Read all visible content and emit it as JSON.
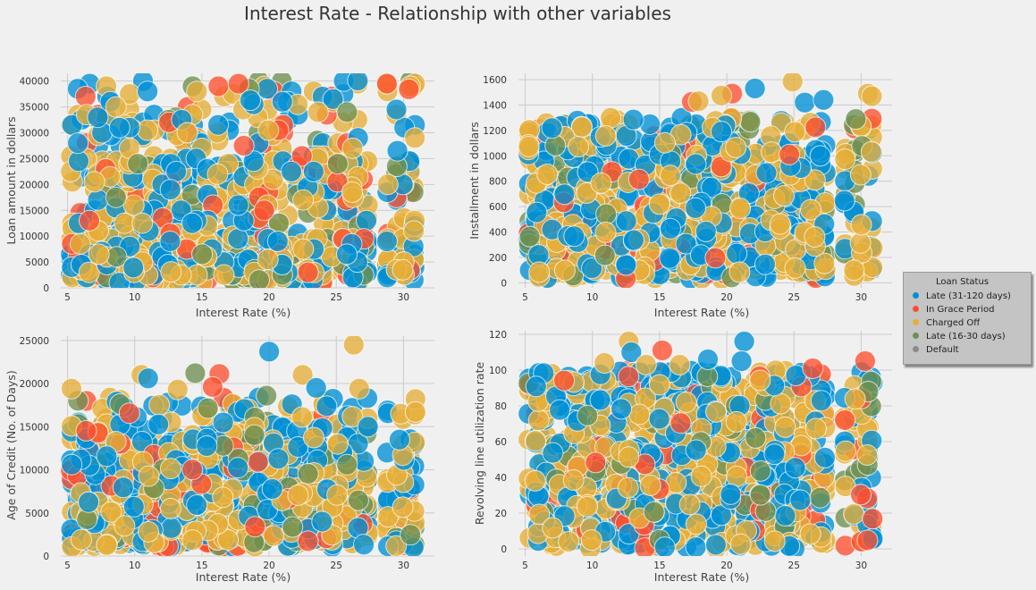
{
  "chart_data": [
    {
      "type": "scatter",
      "xlabel": "Interest Rate (%)",
      "ylabel": "Loan amount in dollars",
      "xlim": [
        4.5,
        32.3
      ],
      "ylim": [
        0,
        41500
      ],
      "xticks": [
        5,
        10,
        15,
        20,
        25,
        30
      ],
      "yticks": [
        0,
        5000,
        10000,
        15000,
        20000,
        25000,
        30000,
        35000,
        40000
      ],
      "y_range": [
        1000,
        40000
      ],
      "y_step": 500,
      "y_bands": [
        [
          1000,
          10000,
          0.5
        ],
        [
          10000,
          25000,
          0.35
        ],
        [
          25000,
          40000,
          0.15
        ]
      ],
      "n_points": 950,
      "seed": 11,
      "extras": [
        {
          "x": 26.6,
          "y": 40100,
          "s": 0
        },
        {
          "x": 30.4,
          "y": 38400,
          "s": 1
        },
        {
          "x": 18.6,
          "y": 36300,
          "s": 0
        },
        {
          "x": 12.7,
          "y": 3100,
          "s": 2
        },
        {
          "x": 9.9,
          "y": 3900,
          "s": 0
        }
      ]
    },
    {
      "type": "scatter",
      "xlabel": "Interest Rate (%)",
      "ylabel": "Installment in dollars",
      "xlim": [
        4.5,
        32.3
      ],
      "ylim": [
        -40,
        1650
      ],
      "xticks": [
        5,
        10,
        15,
        20,
        25,
        30
      ],
      "yticks": [
        0,
        200,
        400,
        600,
        800,
        1000,
        1200,
        1400,
        1600
      ],
      "y_range": [
        30,
        1300
      ],
      "y_slope": 11,
      "y_bands": [
        [
          30,
          500,
          0.45
        ],
        [
          500,
          1000,
          0.38
        ],
        [
          1000,
          1300,
          0.17
        ]
      ],
      "n_points": 950,
      "seed": 23,
      "extras": [
        {
          "x": 24.9,
          "y": 1585,
          "s": 2
        },
        {
          "x": 22.1,
          "y": 1530,
          "s": 0
        },
        {
          "x": 20.4,
          "y": 1490,
          "s": 1
        },
        {
          "x": 19.6,
          "y": 1475,
          "s": 2
        },
        {
          "x": 30.5,
          "y": 1490,
          "s": 2
        },
        {
          "x": 30.8,
          "y": 1470,
          "s": 2
        },
        {
          "x": 17.4,
          "y": 1425,
          "s": 1
        },
        {
          "x": 17.9,
          "y": 1430,
          "s": 2
        },
        {
          "x": 25.8,
          "y": 1420,
          "s": 0
        },
        {
          "x": 27.2,
          "y": 1440,
          "s": 0
        },
        {
          "x": 29.6,
          "y": 1290,
          "s": 3
        },
        {
          "x": 26.6,
          "y": 1225,
          "s": 1
        }
      ]
    },
    {
      "type": "scatter",
      "xlabel": "Interest Rate (%)",
      "ylabel": "Age of Credit (No. of Days)",
      "xlim": [
        4.5,
        32.3
      ],
      "ylim": [
        0,
        25500
      ],
      "xticks": [
        5,
        10,
        15,
        20,
        25,
        30
      ],
      "yticks": [
        0,
        5000,
        10000,
        15000,
        20000,
        25000
      ],
      "y_range": [
        1000,
        18500
      ],
      "y_bands": [
        [
          1000,
          8000,
          0.55
        ],
        [
          8000,
          13500,
          0.32
        ],
        [
          13500,
          18500,
          0.13
        ]
      ],
      "n_points": 950,
      "seed": 37,
      "extras": [
        {
          "x": 26.3,
          "y": 24500,
          "s": 2
        },
        {
          "x": 20.0,
          "y": 23700,
          "s": 0
        },
        {
          "x": 14.5,
          "y": 21200,
          "s": 3
        },
        {
          "x": 16.3,
          "y": 21100,
          "s": 1
        },
        {
          "x": 10.5,
          "y": 21000,
          "s": 2
        },
        {
          "x": 11.0,
          "y": 20600,
          "s": 0
        },
        {
          "x": 22.5,
          "y": 21000,
          "s": 2
        },
        {
          "x": 23.5,
          "y": 19500,
          "s": 0
        },
        {
          "x": 5.3,
          "y": 19400,
          "s": 2
        },
        {
          "x": 15.8,
          "y": 19600,
          "s": 1
        },
        {
          "x": 19.8,
          "y": 18600,
          "s": 3
        },
        {
          "x": 30.9,
          "y": 18200,
          "s": 2
        },
        {
          "x": 26.7,
          "y": 19400,
          "s": 2
        },
        {
          "x": 13.2,
          "y": 19300,
          "s": 2
        },
        {
          "x": 29.8,
          "y": 16500,
          "s": 2
        },
        {
          "x": 30.9,
          "y": 16700,
          "s": 2
        },
        {
          "x": 29.7,
          "y": 13500,
          "s": 0
        }
      ]
    },
    {
      "type": "scatter",
      "xlabel": "Interest Rate (%)",
      "ylabel": "Revolving line utilization rate",
      "xlim": [
        4.5,
        32.3
      ],
      "ylim": [
        -4,
        122
      ],
      "xticks": [
        5,
        10,
        15,
        20,
        25,
        30
      ],
      "yticks": [
        0,
        20,
        40,
        60,
        80,
        100,
        120
      ],
      "y_range": [
        0,
        100
      ],
      "y_bands": [
        [
          0,
          100,
          1.0
        ]
      ],
      "n_points": 950,
      "seed": 53,
      "extras": [
        {
          "x": 21.3,
          "y": 116,
          "s": 0
        },
        {
          "x": 12.7,
          "y": 116,
          "s": 2
        },
        {
          "x": 12.9,
          "y": 110,
          "s": 0
        },
        {
          "x": 15.2,
          "y": 111,
          "s": 1
        },
        {
          "x": 18.6,
          "y": 106,
          "s": 0
        },
        {
          "x": 21.1,
          "y": 105,
          "s": 0
        },
        {
          "x": 30.3,
          "y": 105,
          "s": 1
        },
        {
          "x": 26.4,
          "y": 101,
          "s": 1
        },
        {
          "x": 14.0,
          "y": 103,
          "s": 2
        },
        {
          "x": 16.5,
          "y": 103,
          "s": 2
        },
        {
          "x": 10.9,
          "y": 104,
          "s": 2
        }
      ]
    }
  ],
  "figure": {
    "title": "Interest Rate - Relationship with other variables",
    "x_rates": [
      5.3,
      5.8,
      6.0,
      6.4,
      6.6,
      7.0,
      7.3,
      7.6,
      7.9,
      8.2,
      8.6,
      8.9,
      9.2,
      9.6,
      9.9,
      10.2,
      10.6,
      11.0,
      11.4,
      11.8,
      12.1,
      12.5,
      12.7,
      13.1,
      13.5,
      13.9,
      14.3,
      14.6,
      15.0,
      15.4,
      15.8,
      16.2,
      16.6,
      17.0,
      17.3,
      17.7,
      18.1,
      18.5,
      18.9,
      19.2,
      19.6,
      19.9,
      20.3,
      20.7,
      21.0,
      21.4,
      21.7,
      22.1,
      22.5,
      22.9,
      23.3,
      23.6,
      24.0,
      24.3,
      24.7,
      25.1,
      25.5,
      25.8,
      26.2,
      26.6,
      27.0,
      27.3,
      28.8,
      29.5,
      30.0,
      30.5,
      30.8
    ]
  },
  "legend": {
    "title": "Loan Status",
    "entries": [
      {
        "label": "Late (31-120 days)",
        "color": "#008fd5",
        "weight": 0.36
      },
      {
        "label": "In Grace Period",
        "color": "#fc4f30",
        "weight": 0.09
      },
      {
        "label": "Charged Off",
        "color": "#e5ae38",
        "weight": 0.45
      },
      {
        "label": "Late (16-30 days)",
        "color": "#6d904f",
        "weight": 0.1
      },
      {
        "label": "Default",
        "color": "#8b8b8b",
        "weight": 0.0
      }
    ]
  }
}
